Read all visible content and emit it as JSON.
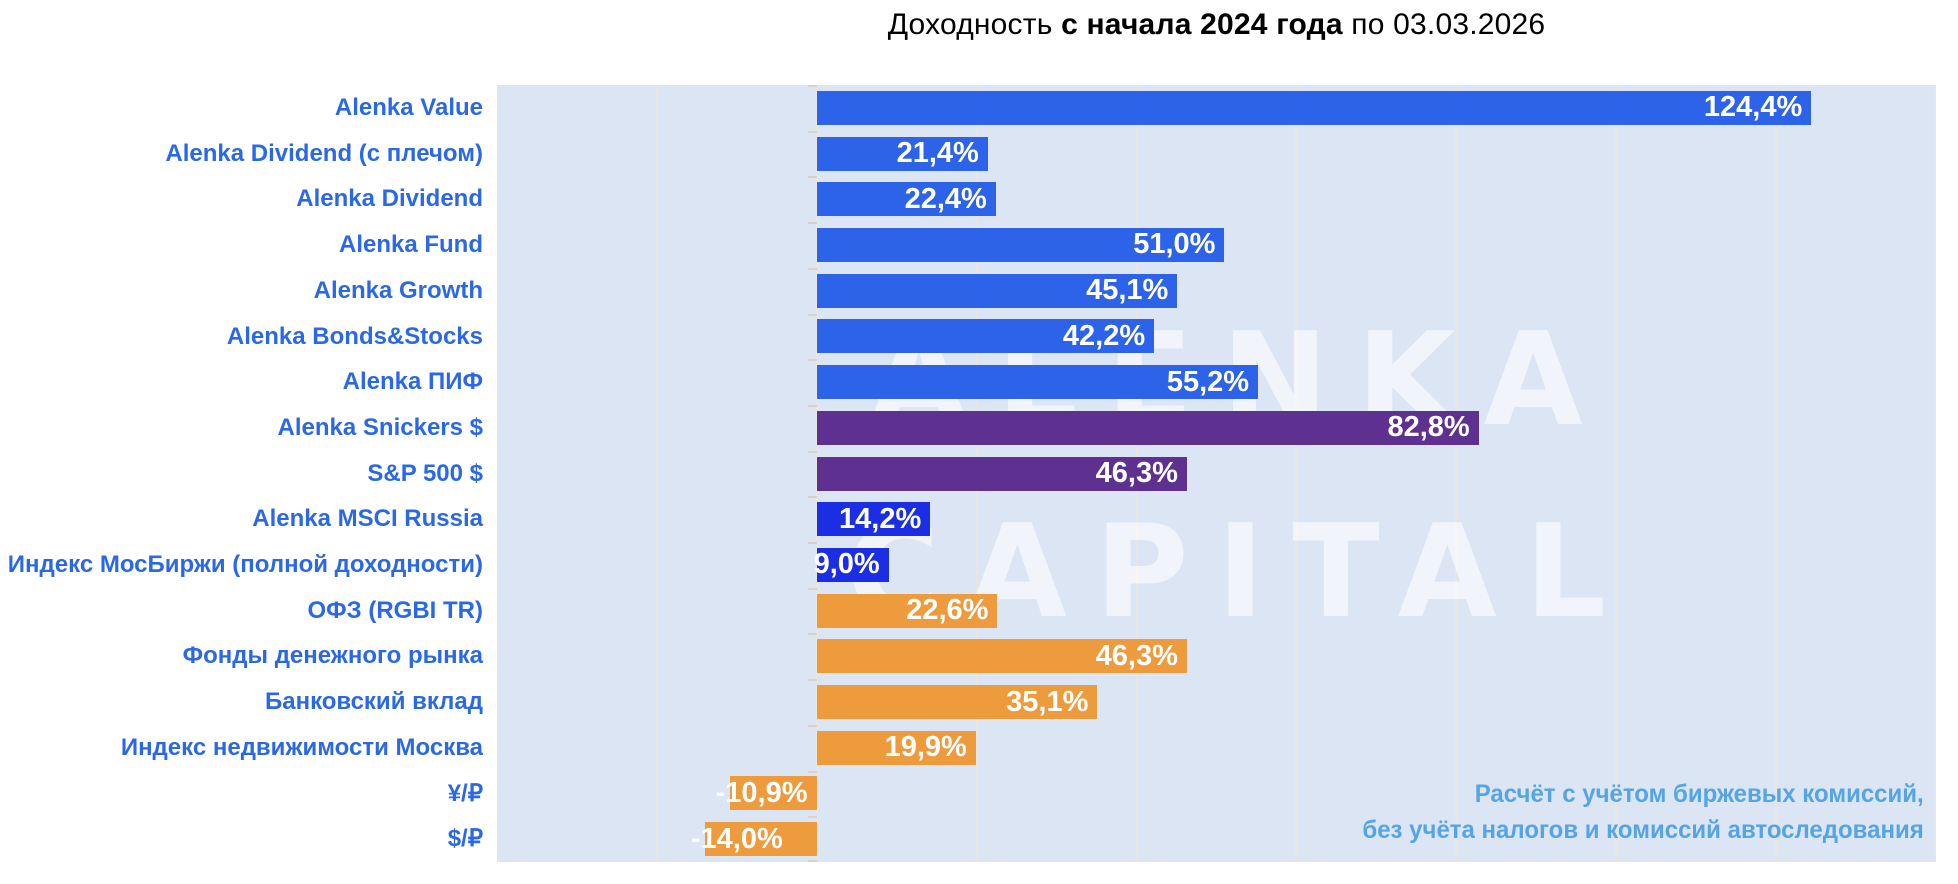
{
  "title": {
    "prefix": "Доходность ",
    "bold": "с начала 2024 года",
    "suffix": " по 03.03.2026"
  },
  "watermark": {
    "line1": "ALENKA",
    "line2": "CAPITAL"
  },
  "footnote": {
    "line1": "Расчёт с учётом биржевых комиссий,",
    "line2": "без учёта налогов и комиссий автоследования"
  },
  "colors": {
    "blue": "#2d63e8",
    "deep_blue": "#1c2ee4",
    "purple": "#5e3191",
    "orange": "#ee9b3d",
    "category_label": "#2b68e8",
    "plot_background": "#dbe5f4",
    "gridline": "#e9e6e0",
    "footnote_text": "#55a4e4",
    "value_text": "#ffffff"
  },
  "chart_data": {
    "type": "bar",
    "orientation": "horizontal",
    "title": "Доходность с начала 2024 года по 03.03.2026",
    "xlabel": "",
    "ylabel": "",
    "xlim": [
      -40,
      140
    ],
    "gridline_step": 20,
    "grid": true,
    "legend": false,
    "value_suffix": "%",
    "rows": [
      {
        "label": "Alenka Value",
        "value": 124.4,
        "display": "124,4%",
        "color": "blue"
      },
      {
        "label": "Alenka Dividend (с плечом)",
        "value": 21.4,
        "display": "21,4%",
        "color": "blue"
      },
      {
        "label": "Alenka Dividend",
        "value": 22.4,
        "display": "22,4%",
        "color": "blue"
      },
      {
        "label": "Alenka Fund",
        "value": 51.0,
        "display": "51,0%",
        "color": "blue"
      },
      {
        "label": "Alenka Growth",
        "value": 45.1,
        "display": "45,1%",
        "color": "blue"
      },
      {
        "label": "Alenka Bonds&Stocks",
        "value": 42.2,
        "display": "42,2%",
        "color": "blue"
      },
      {
        "label": "Alenka ПИФ",
        "value": 55.2,
        "display": "55,2%",
        "color": "blue"
      },
      {
        "label": "Alenka Snickers $",
        "value": 82.8,
        "display": "82,8%",
        "color": "purple"
      },
      {
        "label": "S&P 500 $",
        "value": 46.3,
        "display": "46,3%",
        "color": "purple"
      },
      {
        "label": "Alenka MSCI Russia",
        "value": 14.2,
        "display": "14,2%",
        "color": "deep_blue"
      },
      {
        "label": "Индекс МосБиржи (полной доходности)",
        "value": 9.0,
        "display": "9,0%",
        "color": "deep_blue"
      },
      {
        "label": "ОФЗ (RGBI TR)",
        "value": 22.6,
        "display": "22,6%",
        "color": "orange"
      },
      {
        "label": "Фонды денежного рынка",
        "value": 46.3,
        "display": "46,3%",
        "color": "orange"
      },
      {
        "label": "Банковский вклад",
        "value": 35.1,
        "display": "35,1%",
        "color": "orange"
      },
      {
        "label": "Индекс недвижимости Москва",
        "value": 19.9,
        "display": "19,9%",
        "color": "orange"
      },
      {
        "label": "¥/₽",
        "value": -10.9,
        "display": "-10,9%",
        "color": "orange"
      },
      {
        "label": "$/₽",
        "value": -14.0,
        "display": "-14,0%",
        "color": "orange"
      }
    ]
  }
}
